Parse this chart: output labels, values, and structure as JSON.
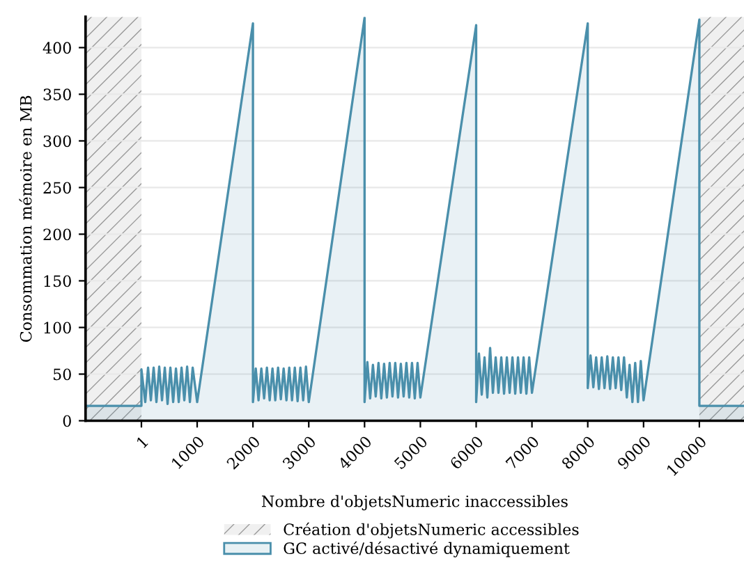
{
  "chart_data": {
    "type": "area",
    "xlabel": "Nombre d'objetsNumeric inaccessibles",
    "ylabel": "Consommation mémoire en MB",
    "series": [
      {
        "name": "GC activé/désactivé dynamiquement",
        "color": "#4a8fab",
        "x": [
          -1000,
          1,
          1,
          70,
          120,
          170,
          220,
          270,
          320,
          370,
          420,
          470,
          520,
          570,
          620,
          670,
          720,
          770,
          820,
          870,
          920,
          1000,
          2000,
          2000,
          2050,
          2100,
          2150,
          2200,
          2250,
          2300,
          2350,
          2400,
          2450,
          2500,
          2550,
          2600,
          2650,
          2700,
          2750,
          2800,
          2850,
          2900,
          2950,
          3000,
          4000,
          4000,
          4050,
          4100,
          4150,
          4200,
          4250,
          4300,
          4350,
          4400,
          4450,
          4500,
          4550,
          4600,
          4650,
          4700,
          4750,
          4800,
          4850,
          4900,
          4950,
          5000,
          6000,
          6000,
          6050,
          6100,
          6150,
          6200,
          6250,
          6300,
          6350,
          6400,
          6450,
          6500,
          6550,
          6600,
          6650,
          6700,
          6750,
          6800,
          6850,
          6900,
          6950,
          7000,
          8000,
          8000,
          8050,
          8100,
          8150,
          8200,
          8250,
          8300,
          8350,
          8400,
          8450,
          8500,
          8550,
          8600,
          8650,
          8700,
          8750,
          8800,
          8850,
          8900,
          8950,
          9000,
          10000,
          10000,
          10800
        ],
        "values": [
          16,
          16,
          55,
          20,
          57,
          22,
          57,
          20,
          58,
          22,
          57,
          18,
          57,
          20,
          56,
          20,
          57,
          22,
          58,
          20,
          57,
          20,
          426,
          20,
          56,
          22,
          56,
          24,
          57,
          22,
          56,
          22,
          57,
          23,
          56,
          22,
          57,
          22,
          57,
          21,
          57,
          22,
          58,
          20,
          432,
          20,
          63,
          24,
          60,
          26,
          62,
          24,
          61,
          25,
          62,
          26,
          62,
          25,
          61,
          26,
          62,
          25,
          62,
          24,
          62,
          25,
          424,
          20,
          72,
          28,
          68,
          25,
          78,
          30,
          68,
          30,
          68,
          29,
          68,
          30,
          68,
          29,
          68,
          30,
          68,
          29,
          68,
          30,
          426,
          35,
          70,
          36,
          68,
          34,
          68,
          35,
          69,
          34,
          68,
          35,
          68,
          33,
          68,
          25,
          60,
          20,
          62,
          20,
          64,
          22,
          430,
          16,
          16
        ]
      }
    ],
    "bands": [
      {
        "axis": "x",
        "from": -1000,
        "to": 1,
        "label": "Création d'objetsNumeric accessibles",
        "color": "#f0f0f0"
      },
      {
        "axis": "x",
        "from": 10000,
        "to": 10800,
        "color": "#f0f0f0"
      }
    ],
    "xlim": [
      -1000,
      10800
    ],
    "xticks": [
      1,
      1000,
      2000,
      3000,
      4000,
      5000,
      6000,
      7000,
      8000,
      9000,
      10000
    ],
    "ylim": [
      0,
      433
    ],
    "yticks": [
      0,
      50,
      100,
      150,
      200,
      250,
      300,
      350,
      400
    ],
    "grid": "y",
    "legend": "bottom"
  }
}
